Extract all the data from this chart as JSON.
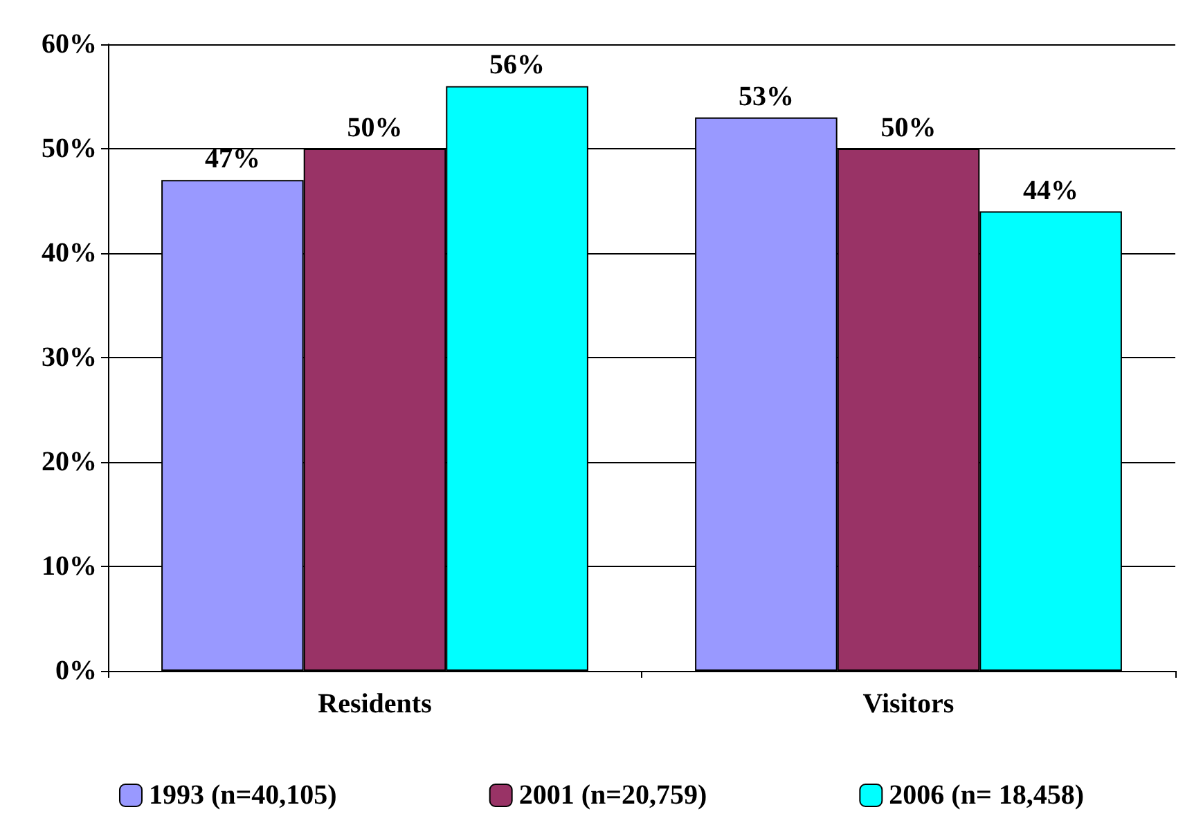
{
  "chart_data": {
    "type": "bar",
    "categories": [
      "Residents",
      "Visitors"
    ],
    "series": [
      {
        "name": "1993 (n=40,105)",
        "color": "#9999ff",
        "values": [
          47,
          53
        ],
        "value_labels": [
          "47%",
          "53%"
        ]
      },
      {
        "name": "2001 (n=20,759)",
        "color": "#993366",
        "values": [
          50,
          50
        ],
        "value_labels": [
          "50%",
          "50%"
        ]
      },
      {
        "name": "2006 (n= 18,458)",
        "color": "#00ffff",
        "values": [
          56,
          44
        ],
        "value_labels": [
          "56%",
          "44%"
        ]
      }
    ],
    "ylim": [
      0,
      60
    ],
    "yticks": [
      {
        "value": 0,
        "label": "0%"
      },
      {
        "value": 10,
        "label": "10%"
      },
      {
        "value": 20,
        "label": "20%"
      },
      {
        "value": 30,
        "label": "30%"
      },
      {
        "value": 40,
        "label": "40%"
      },
      {
        "value": 50,
        "label": "50%"
      },
      {
        "value": 60,
        "label": "60%"
      }
    ],
    "grid": "y",
    "legend": "bottom"
  }
}
